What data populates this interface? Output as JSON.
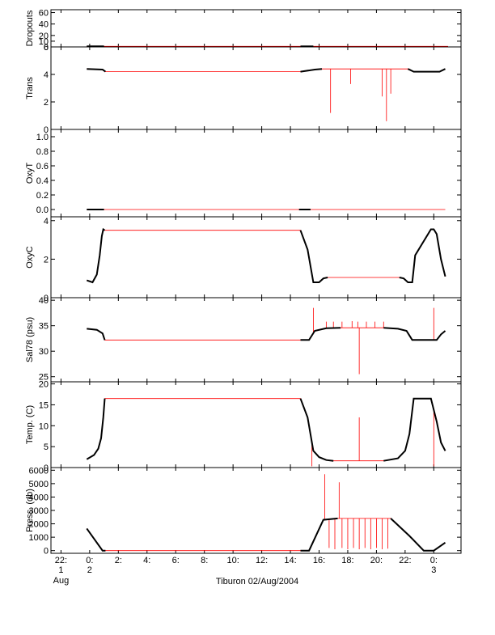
{
  "figure": {
    "xlabel": "Tiburon 02/Aug/2004",
    "x_ticks": [
      {
        "h": -2,
        "line1": "22:",
        "line2": "1",
        "line3": "Aug"
      },
      {
        "h": 0,
        "line1": "0:",
        "line2": "2",
        "line3": ""
      },
      {
        "h": 2,
        "line1": "2:",
        "line2": "",
        "line3": ""
      },
      {
        "h": 4,
        "line1": "4:",
        "line2": "",
        "line3": ""
      },
      {
        "h": 6,
        "line1": "6:",
        "line2": "",
        "line3": ""
      },
      {
        "h": 8,
        "line1": "8:",
        "line2": "",
        "line3": ""
      },
      {
        "h": 10,
        "line1": "10:",
        "line2": "",
        "line3": ""
      },
      {
        "h": 12,
        "line1": "12:",
        "line2": "",
        "line3": ""
      },
      {
        "h": 14,
        "line1": "14:",
        "line2": "",
        "line3": ""
      },
      {
        "h": 16,
        "line1": "16:",
        "line2": "",
        "line3": ""
      },
      {
        "h": 18,
        "line1": "18:",
        "line2": "",
        "line3": ""
      },
      {
        "h": 20,
        "line1": "20:",
        "line2": "",
        "line3": ""
      },
      {
        "h": 22,
        "line1": "22:",
        "line2": "",
        "line3": ""
      },
      {
        "h": 24,
        "line1": "0:",
        "line2": "3",
        "line3": ""
      }
    ],
    "line_color": "#000000",
    "spike_color": "#ff0000"
  },
  "chart_data": [
    {
      "type": "line",
      "ylabel": "Dropouts",
      "ylim": [
        0,
        65
      ],
      "yticks": [
        0,
        10,
        20,
        40,
        60
      ],
      "xlim_hours": [
        -2.7,
        25.9
      ],
      "series": [
        {
          "x": [
            -0.2,
            1.0,
            14.7,
            15.6,
            25.0
          ],
          "y": [
            1,
            1,
            1,
            1,
            1
          ]
        }
      ]
    },
    {
      "type": "line",
      "ylabel": "Trans",
      "ylim": [
        0,
        6
      ],
      "yticks": [
        0,
        2,
        4,
        6
      ],
      "xlim_hours": [
        -2.7,
        25.9
      ],
      "series": [
        {
          "x": [
            -0.2,
            0.9,
            1.1,
            14.7,
            15.7,
            16.2,
            22.2,
            22.6,
            24.4,
            24.8
          ],
          "y": [
            4.4,
            4.35,
            4.2,
            4.2,
            4.35,
            4.4,
            4.4,
            4.2,
            4.2,
            4.4
          ]
        }
      ],
      "dips": [
        {
          "x": 16.8,
          "y": 1.2
        },
        {
          "x": 18.2,
          "y": 3.3
        },
        {
          "x": 20.7,
          "y": 0.6
        },
        {
          "x": 20.4,
          "y": 2.4
        },
        {
          "x": 21.0,
          "y": 2.6
        }
      ]
    },
    {
      "type": "line",
      "ylabel": "OxyT",
      "ylim": [
        -0.1,
        1.1
      ],
      "yticks": [
        0.0,
        0.2,
        0.4,
        0.6,
        0.8,
        1.0
      ],
      "ytick_labels": [
        "0.0",
        "0.2",
        "0.4",
        "0.6",
        "0.8",
        "1.0"
      ],
      "xlim_hours": [
        -2.7,
        25.9
      ],
      "series": [
        {
          "x": [
            -0.2,
            1.0,
            14.6,
            14.7,
            15.4,
            24.8
          ],
          "y": [
            0.0,
            0.0,
            0.0,
            0.0,
            0.0,
            0.0
          ]
        }
      ]
    },
    {
      "type": "line",
      "ylabel": "OxyC",
      "ylim": [
        0,
        4.2
      ],
      "yticks": [
        0,
        2,
        4
      ],
      "xlim_hours": [
        -2.7,
        25.9
      ],
      "series": [
        {
          "x": [
            -0.2,
            0.2,
            0.5,
            0.7,
            0.85,
            0.95,
            1.05,
            14.7,
            15.2,
            15.6,
            16.0,
            16.3,
            16.6,
            21.6,
            21.9,
            22.2,
            22.5,
            22.7,
            23.8,
            24.0,
            24.2,
            24.5,
            24.8
          ],
          "y": [
            0.9,
            0.8,
            1.2,
            2.2,
            3.2,
            3.55,
            3.5,
            3.5,
            2.5,
            0.8,
            0.8,
            1.0,
            1.05,
            1.05,
            1.0,
            0.8,
            0.8,
            2.2,
            3.55,
            3.55,
            3.3,
            2.0,
            1.1
          ]
        }
      ]
    },
    {
      "type": "line",
      "ylabel": "Sal78 (psu)",
      "ylim": [
        24,
        40.5
      ],
      "yticks": [
        25,
        30,
        35,
        40
      ],
      "xlim_hours": [
        -2.7,
        25.9
      ],
      "series": [
        {
          "x": [
            -0.2,
            0.5,
            0.9,
            1.05,
            14.7,
            15.3,
            15.7,
            16.5,
            17.5,
            20.5,
            21.5,
            22.1,
            22.5,
            24.2,
            24.5,
            24.8
          ],
          "y": [
            34.4,
            34.2,
            33.5,
            32.2,
            32.2,
            32.2,
            34.0,
            34.5,
            34.6,
            34.6,
            34.4,
            34.0,
            32.2,
            32.2,
            33.3,
            34.0
          ]
        }
      ],
      "spikes": [
        {
          "x": 15.6,
          "y": 38.5
        },
        {
          "x": 16.5,
          "y": 35.8
        },
        {
          "x": 17.0,
          "y": 35.8
        },
        {
          "x": 17.6,
          "y": 35.8
        },
        {
          "x": 18.3,
          "y": 35.9
        },
        {
          "x": 18.7,
          "y": 35.8
        },
        {
          "x": 19.3,
          "y": 35.8
        },
        {
          "x": 19.9,
          "y": 35.8
        },
        {
          "x": 20.5,
          "y": 35.8
        },
        {
          "x": 18.8,
          "y": 25.5
        },
        {
          "x": 24.0,
          "y": 38.5
        }
      ]
    },
    {
      "type": "line",
      "ylabel": "Temp. (C)",
      "ylim": [
        0,
        20.5
      ],
      "yticks": [
        0,
        5,
        10,
        15,
        20
      ],
      "xlim_hours": [
        -2.7,
        25.9
      ],
      "series": [
        {
          "x": [
            -0.2,
            0.3,
            0.6,
            0.8,
            0.95,
            1.05,
            14.7,
            15.2,
            15.6,
            16.0,
            16.5,
            17.0,
            20.5,
            21.5,
            22.0,
            22.3,
            22.6,
            23.8,
            24.2,
            24.5,
            24.8
          ],
          "y": [
            2.0,
            3.0,
            4.5,
            7.0,
            12.0,
            16.5,
            16.5,
            12.0,
            4.0,
            2.5,
            1.8,
            1.6,
            1.6,
            2.2,
            4.0,
            8.0,
            16.5,
            16.5,
            11.0,
            6.0,
            4.0
          ]
        }
      ],
      "spikes": [
        {
          "x": 15.5,
          "y": 0.3
        },
        {
          "x": 18.8,
          "y": 12.0
        },
        {
          "x": 24.0,
          "y": 0.3
        }
      ]
    },
    {
      "type": "line",
      "ylabel": "Press. (db)",
      "ylim": [
        -200,
        6200
      ],
      "yticks": [
        0,
        1000,
        2000,
        3000,
        4000,
        5000,
        6000
      ],
      "xlim_hours": [
        -2.7,
        25.9
      ],
      "series": [
        {
          "x": [
            -0.2,
            0.9,
            1.1,
            14.7,
            15.3,
            16.3,
            17.3,
            21.0,
            22.3,
            23.3,
            24.0,
            24.8
          ],
          "y": [
            1650,
            0,
            0,
            0,
            0,
            2300,
            2400,
            2400,
            1100,
            0,
            0,
            600
          ]
        }
      ],
      "spikes": [
        {
          "x": 16.4,
          "y": 5700
        },
        {
          "x": 17.4,
          "y": 5100
        },
        {
          "x": 16.7,
          "y": 200
        },
        {
          "x": 17.1,
          "y": 100
        },
        {
          "x": 17.6,
          "y": 200
        },
        {
          "x": 18.0,
          "y": 100
        },
        {
          "x": 18.4,
          "y": 200
        },
        {
          "x": 18.8,
          "y": 100
        },
        {
          "x": 19.2,
          "y": 200
        },
        {
          "x": 19.6,
          "y": 100
        },
        {
          "x": 20.0,
          "y": 200
        },
        {
          "x": 20.4,
          "y": 100
        },
        {
          "x": 20.8,
          "y": 150
        }
      ]
    }
  ]
}
